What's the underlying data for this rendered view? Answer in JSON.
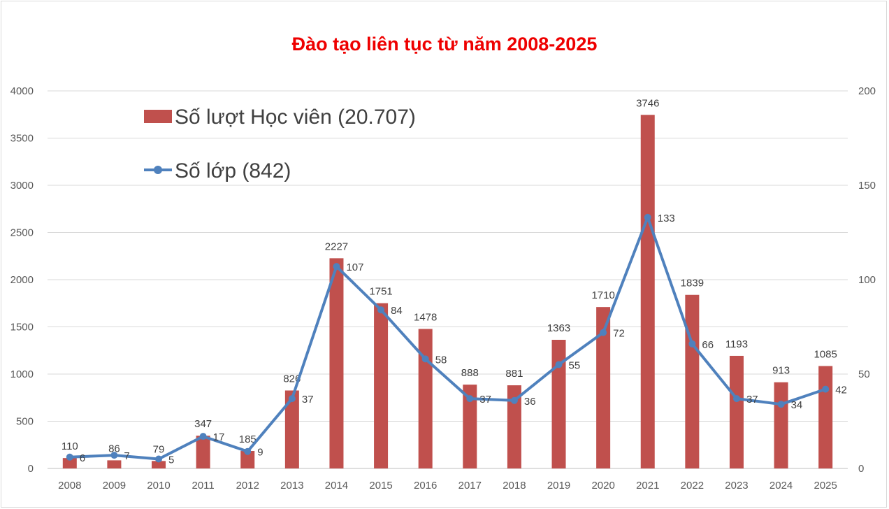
{
  "chart_data": {
    "type": "bar",
    "title": "Đào tạo liên tục từ năm 2008-2025",
    "categories": [
      "2008",
      "2009",
      "2010",
      "2011",
      "2012",
      "2013",
      "2014",
      "2015",
      "2016",
      "2017",
      "2018",
      "2019",
      "2020",
      "2021",
      "2022",
      "2023",
      "2024",
      "2025"
    ],
    "series": [
      {
        "name": "Số lượt Học viên (20.707)",
        "kind": "bar",
        "axis": "left",
        "color": "#c0504d",
        "values": [
          110,
          86,
          79,
          347,
          185,
          826,
          2227,
          1751,
          1478,
          888,
          881,
          1363,
          1710,
          3746,
          1839,
          1193,
          913,
          1085
        ]
      },
      {
        "name": "Số lớp (842)",
        "kind": "line",
        "axis": "right",
        "color": "#4f81bd",
        "values": [
          6,
          7,
          5,
          17,
          9,
          37,
          107,
          84,
          58,
          37,
          36,
          55,
          72,
          133,
          66,
          37,
          34,
          42
        ]
      }
    ],
    "y_left": {
      "min": 0,
      "max": 4000,
      "ticks": [
        0,
        500,
        1000,
        1500,
        2000,
        2500,
        3000,
        3500,
        4000
      ]
    },
    "y_right": {
      "min": 0,
      "max": 200,
      "ticks": [
        0,
        50,
        100,
        150,
        200
      ]
    },
    "grid": true,
    "legend": "top-left"
  }
}
